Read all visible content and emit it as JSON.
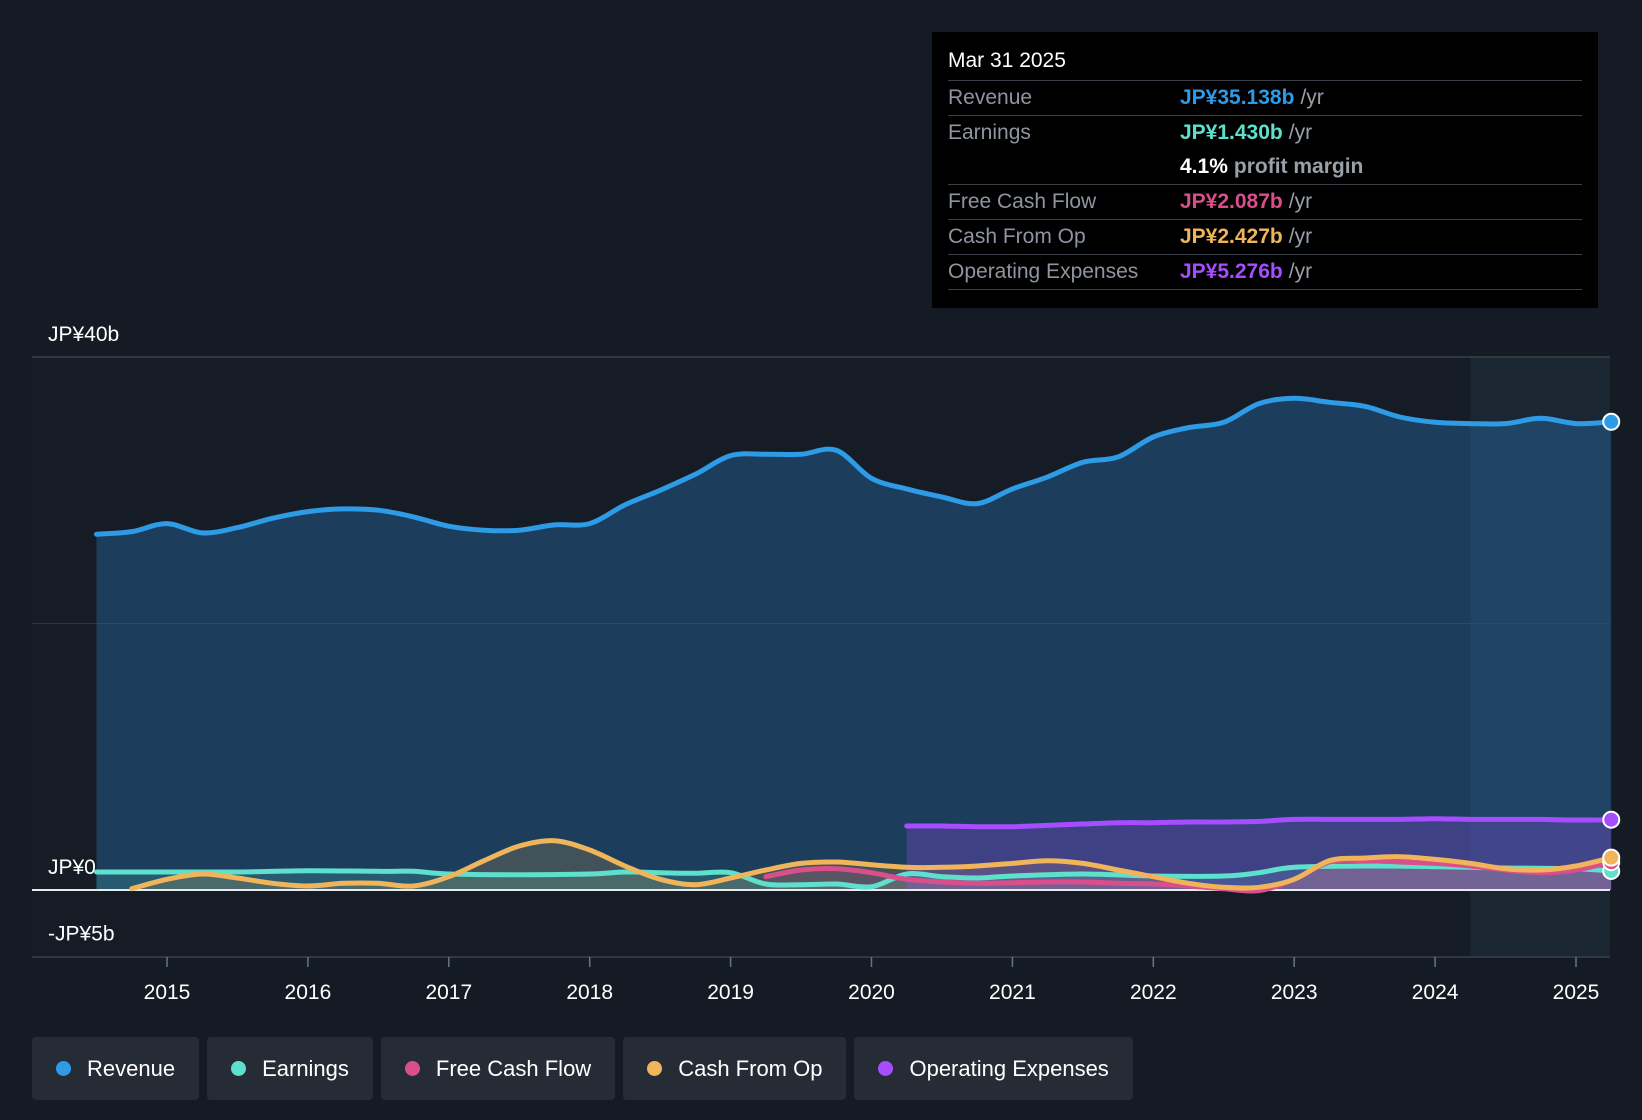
{
  "tooltip": {
    "date": "Mar 31 2025",
    "rows": [
      {
        "label": "Revenue",
        "value": "JP¥35.138b",
        "unit": "/yr",
        "color": "#2d9be6"
      },
      {
        "label": "Earnings",
        "value": "JP¥1.430b",
        "unit": "/yr",
        "color": "#5ee0cc"
      },
      {
        "label": "",
        "value": "4.1%",
        "unit": "profit margin",
        "color": "#ffffff"
      },
      {
        "label": "Free Cash Flow",
        "value": "JP¥2.087b",
        "unit": "/yr",
        "color": "#d94f8c"
      },
      {
        "label": "Cash From Op",
        "value": "JP¥2.427b",
        "unit": "/yr",
        "color": "#f0b45a"
      },
      {
        "label": "Operating Expenses",
        "value": "JP¥5.276b",
        "unit": "/yr",
        "color": "#a64dff"
      }
    ]
  },
  "legend": [
    {
      "label": "Revenue",
      "color": "#2d9be6"
    },
    {
      "label": "Earnings",
      "color": "#5ee0cc"
    },
    {
      "label": "Free Cash Flow",
      "color": "#d94f8c"
    },
    {
      "label": "Cash From Op",
      "color": "#f0b45a"
    },
    {
      "label": "Operating Expenses",
      "color": "#a64dff"
    }
  ],
  "chart_data": {
    "type": "area",
    "title": "",
    "xlabel": "",
    "ylabel": "",
    "ylim": [
      -5,
      40
    ],
    "xlim": [
      2014.05,
      2025.3
    ],
    "forecast_start": 2024.25,
    "y_tick_labels": [
      {
        "value": 40,
        "label": "JP¥40b"
      },
      {
        "value": 0,
        "label": "JP¥0"
      },
      {
        "value": -5,
        "label": "-JP¥5b"
      }
    ],
    "x_ticks": [
      2015,
      2016,
      2017,
      2018,
      2019,
      2020,
      2021,
      2022,
      2023,
      2024,
      2025
    ],
    "x_tick_labels": [
      "2015",
      "2016",
      "2017",
      "2018",
      "2019",
      "2020",
      "2021",
      "2022",
      "2023",
      "2024",
      "2025"
    ],
    "series": [
      {
        "name": "Revenue",
        "color": "#2d9be6",
        "filled": true,
        "x": [
          2014.5,
          2014.75,
          2015.0,
          2015.25,
          2015.5,
          2015.75,
          2016.0,
          2016.25,
          2016.5,
          2016.75,
          2017.0,
          2017.25,
          2017.5,
          2017.75,
          2018.0,
          2018.25,
          2018.5,
          2018.75,
          2019.0,
          2019.25,
          2019.5,
          2019.75,
          2020.0,
          2020.25,
          2020.5,
          2020.75,
          2021.0,
          2021.25,
          2021.5,
          2021.75,
          2022.0,
          2022.25,
          2022.5,
          2022.75,
          2023.0,
          2023.25,
          2023.5,
          2023.75,
          2024.0,
          2024.25,
          2024.5,
          2024.75,
          2025.0,
          2025.25
        ],
        "values": [
          26.7,
          26.9,
          27.5,
          26.8,
          27.2,
          27.9,
          28.4,
          28.6,
          28.5,
          28.0,
          27.3,
          27.0,
          27.0,
          27.4,
          27.5,
          28.9,
          30.0,
          31.2,
          32.6,
          32.7,
          32.7,
          33.0,
          30.9,
          30.1,
          29.5,
          29.0,
          30.1,
          31.0,
          32.1,
          32.5,
          34.0,
          34.7,
          35.1,
          36.5,
          36.9,
          36.6,
          36.3,
          35.5,
          35.1,
          35.0,
          35.0,
          35.4,
          35.0,
          35.138
        ]
      },
      {
        "name": "Earnings",
        "color": "#5ee0cc",
        "filled": true,
        "x": [
          2014.5,
          2015.0,
          2015.5,
          2016.0,
          2016.5,
          2016.75,
          2017.0,
          2017.5,
          2018.0,
          2018.25,
          2018.5,
          2018.75,
          2019.0,
          2019.25,
          2019.5,
          2019.75,
          2020.0,
          2020.25,
          2020.5,
          2020.75,
          2021.0,
          2021.5,
          2022.0,
          2022.5,
          2022.75,
          2023.0,
          2023.5,
          2024.0,
          2024.5,
          2025.0,
          2025.25
        ],
        "values": [
          1.35,
          1.35,
          1.35,
          1.45,
          1.4,
          1.4,
          1.2,
          1.15,
          1.2,
          1.35,
          1.3,
          1.25,
          1.3,
          0.45,
          0.4,
          0.45,
          0.25,
          1.2,
          1.0,
          0.9,
          1.05,
          1.2,
          1.05,
          1.05,
          1.3,
          1.7,
          1.8,
          1.75,
          1.65,
          1.6,
          1.43
        ]
      },
      {
        "name": "Free Cash Flow",
        "color": "#d94f8c",
        "filled": true,
        "x": [
          2019.25,
          2019.5,
          2019.75,
          2020.0,
          2020.25,
          2020.5,
          2020.75,
          2021.0,
          2021.25,
          2021.5,
          2021.75,
          2022.0,
          2022.25,
          2022.5,
          2022.75,
          2023.0,
          2023.25,
          2023.5,
          2023.75,
          2024.0,
          2024.25,
          2024.5,
          2024.75,
          2025.0,
          2025.25
        ],
        "values": [
          1.0,
          1.5,
          1.6,
          1.3,
          0.8,
          0.6,
          0.5,
          0.55,
          0.6,
          0.6,
          0.5,
          0.45,
          0.3,
          0.1,
          -0.05,
          0.8,
          2.1,
          2.2,
          2.1,
          2.0,
          1.8,
          1.5,
          1.3,
          1.5,
          2.087
        ]
      },
      {
        "name": "Cash From Op",
        "color": "#f0b45a",
        "filled": true,
        "x": [
          2014.75,
          2015.0,
          2015.25,
          2015.5,
          2015.75,
          2016.0,
          2016.25,
          2016.5,
          2016.75,
          2017.0,
          2017.25,
          2017.5,
          2017.75,
          2018.0,
          2018.25,
          2018.5,
          2018.75,
          2019.0,
          2019.25,
          2019.5,
          2019.75,
          2020.0,
          2020.25,
          2020.5,
          2020.75,
          2021.0,
          2021.25,
          2021.5,
          2021.75,
          2022.0,
          2022.25,
          2022.5,
          2022.75,
          2023.0,
          2023.25,
          2023.5,
          2023.75,
          2024.0,
          2024.25,
          2024.5,
          2024.75,
          2025.0,
          2025.25
        ],
        "values": [
          0.1,
          0.8,
          1.2,
          0.9,
          0.5,
          0.3,
          0.5,
          0.5,
          0.3,
          1.0,
          2.2,
          3.3,
          3.7,
          3.0,
          1.8,
          0.8,
          0.4,
          0.9,
          1.5,
          2.0,
          2.1,
          1.9,
          1.7,
          1.7,
          1.8,
          2.0,
          2.2,
          2.0,
          1.5,
          1.0,
          0.5,
          0.2,
          0.2,
          0.8,
          2.2,
          2.4,
          2.5,
          2.3,
          2.0,
          1.6,
          1.5,
          1.8,
          2.427
        ]
      },
      {
        "name": "Operating Expenses",
        "color": "#a64dff",
        "filled": true,
        "x": [
          2020.25,
          2020.5,
          2020.75,
          2021.0,
          2021.25,
          2021.5,
          2021.75,
          2022.0,
          2022.25,
          2022.5,
          2022.75,
          2023.0,
          2023.25,
          2023.5,
          2023.75,
          2024.0,
          2024.25,
          2024.5,
          2024.75,
          2025.0,
          2025.25
        ],
        "values": [
          4.8,
          4.8,
          4.75,
          4.75,
          4.85,
          4.95,
          5.05,
          5.05,
          5.1,
          5.1,
          5.15,
          5.3,
          5.3,
          5.3,
          5.3,
          5.35,
          5.3,
          5.3,
          5.3,
          5.25,
          5.276
        ]
      }
    ]
  }
}
